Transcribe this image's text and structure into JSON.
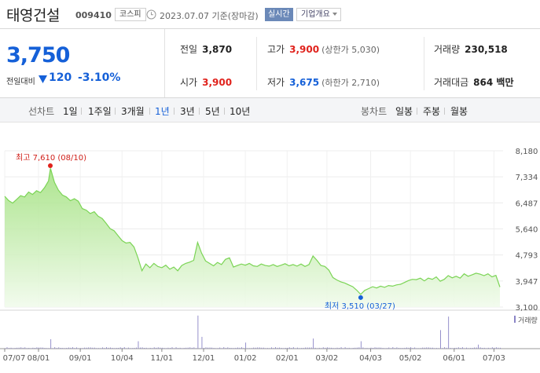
{
  "header": {
    "company_name": "태영건설",
    "stock_code": "009410",
    "market_badge": "코스피",
    "as_of": "2023.07.07 기준(장마감)",
    "realtime_button": "실시간",
    "overview_dropdown": "기업개요"
  },
  "quote": {
    "price": "3,750",
    "change_label": "전일대비",
    "change": "120",
    "change_pct": "-3.10%",
    "prev_close_label": "전일",
    "prev_close": "3,870",
    "high_label": "고가",
    "high": "3,900",
    "upper_limit": "(상한가 5,030)",
    "volume_label": "거래량",
    "volume": "230,518",
    "open_label": "시가",
    "open": "3,900",
    "low_label": "저가",
    "low": "3,675",
    "lower_limit": "(하한가 2,710)",
    "amount_label": "거래대금",
    "amount": "864 백만"
  },
  "period_bar": {
    "line_title": "선차트",
    "line_periods": [
      "1일",
      "1주일",
      "3개월",
      "1년",
      "3년",
      "5년",
      "10년"
    ],
    "active_period": "1년",
    "candle_title": "봉차트",
    "candle_periods": [
      "일봉",
      "주봉",
      "월봉"
    ]
  },
  "colors": {
    "accent_blue": "#1560d8",
    "up_red": "#e0221c",
    "area_line": "#7bd455",
    "volume_bar": "#8a84c6"
  },
  "chart_data": {
    "type": "area",
    "y_ticks": [
      "8,180",
      "7,334",
      "6,487",
      "5,640",
      "4,793",
      "3,947",
      "3,100"
    ],
    "ylim": [
      3100,
      8180
    ],
    "x_tick_labels": [
      "07/07",
      "08/01",
      "09/01",
      "10/04",
      "11/01",
      "12/01",
      "01/02",
      "02/01",
      "03/02",
      "04/03",
      "05/02",
      "06/01",
      "07/03"
    ],
    "x_tick_positions": [
      0,
      17,
      38,
      59,
      79,
      100,
      121,
      142,
      162,
      184,
      204,
      226,
      246
    ],
    "total_days": 249,
    "high_annotation": {
      "label": "최고 7,610 (08/10)",
      "day": 23,
      "value": 7610
    },
    "low_annotation": {
      "label": "최저 3,510 (03/27)",
      "day": 179,
      "value": 3510
    },
    "volume_legend": "거래량",
    "price_points": [
      [
        0,
        6700
      ],
      [
        2,
        6560
      ],
      [
        4,
        6480
      ],
      [
        6,
        6600
      ],
      [
        8,
        6720
      ],
      [
        10,
        6680
      ],
      [
        12,
        6840
      ],
      [
        14,
        6760
      ],
      [
        16,
        6880
      ],
      [
        18,
        6820
      ],
      [
        20,
        6980
      ],
      [
        22,
        7200
      ],
      [
        23,
        7610
      ],
      [
        25,
        7150
      ],
      [
        27,
        6900
      ],
      [
        29,
        6740
      ],
      [
        31,
        6680
      ],
      [
        33,
        6560
      ],
      [
        35,
        6620
      ],
      [
        37,
        6540
      ],
      [
        39,
        6300
      ],
      [
        41,
        6250
      ],
      [
        43,
        6140
      ],
      [
        45,
        6200
      ],
      [
        47,
        6050
      ],
      [
        49,
        5980
      ],
      [
        51,
        5820
      ],
      [
        53,
        5650
      ],
      [
        55,
        5580
      ],
      [
        57,
        5420
      ],
      [
        59,
        5260
      ],
      [
        61,
        5180
      ],
      [
        63,
        5200
      ],
      [
        65,
        5050
      ],
      [
        67,
        4700
      ],
      [
        69,
        4280
      ],
      [
        71,
        4500
      ],
      [
        73,
        4380
      ],
      [
        75,
        4520
      ],
      [
        77,
        4420
      ],
      [
        79,
        4380
      ],
      [
        81,
        4460
      ],
      [
        83,
        4330
      ],
      [
        85,
        4400
      ],
      [
        87,
        4280
      ],
      [
        89,
        4450
      ],
      [
        91,
        4520
      ],
      [
        93,
        4560
      ],
      [
        95,
        4620
      ],
      [
        97,
        5200
      ],
      [
        99,
        4850
      ],
      [
        101,
        4600
      ],
      [
        103,
        4520
      ],
      [
        105,
        4440
      ],
      [
        107,
        4550
      ],
      [
        109,
        4480
      ],
      [
        111,
        4650
      ],
      [
        113,
        4700
      ],
      [
        115,
        4400
      ],
      [
        117,
        4450
      ],
      [
        119,
        4500
      ],
      [
        121,
        4460
      ],
      [
        123,
        4520
      ],
      [
        125,
        4440
      ],
      [
        127,
        4420
      ],
      [
        129,
        4500
      ],
      [
        131,
        4450
      ],
      [
        133,
        4430
      ],
      [
        135,
        4480
      ],
      [
        137,
        4420
      ],
      [
        139,
        4460
      ],
      [
        141,
        4510
      ],
      [
        143,
        4440
      ],
      [
        145,
        4480
      ],
      [
        147,
        4430
      ],
      [
        149,
        4500
      ],
      [
        151,
        4420
      ],
      [
        153,
        4480
      ],
      [
        155,
        4760
      ],
      [
        157,
        4620
      ],
      [
        159,
        4450
      ],
      [
        161,
        4420
      ],
      [
        163,
        4300
      ],
      [
        165,
        4060
      ],
      [
        167,
        3980
      ],
      [
        169,
        3920
      ],
      [
        171,
        3880
      ],
      [
        173,
        3820
      ],
      [
        175,
        3760
      ],
      [
        177,
        3650
      ],
      [
        179,
        3510
      ],
      [
        181,
        3640
      ],
      [
        183,
        3700
      ],
      [
        185,
        3760
      ],
      [
        187,
        3720
      ],
      [
        189,
        3780
      ],
      [
        191,
        3740
      ],
      [
        193,
        3800
      ],
      [
        195,
        3780
      ],
      [
        197,
        3820
      ],
      [
        199,
        3840
      ],
      [
        201,
        3900
      ],
      [
        203,
        3960
      ],
      [
        205,
        4000
      ],
      [
        207,
        3990
      ],
      [
        209,
        4040
      ],
      [
        211,
        3950
      ],
      [
        213,
        4040
      ],
      [
        215,
        4000
      ],
      [
        217,
        4080
      ],
      [
        219,
        3940
      ],
      [
        221,
        4000
      ],
      [
        223,
        4120
      ],
      [
        225,
        4050
      ],
      [
        227,
        4100
      ],
      [
        229,
        4040
      ],
      [
        231,
        4180
      ],
      [
        233,
        4100
      ],
      [
        235,
        4150
      ],
      [
        237,
        4200
      ],
      [
        239,
        4170
      ],
      [
        241,
        4120
      ],
      [
        243,
        4180
      ],
      [
        245,
        4080
      ],
      [
        247,
        4130
      ],
      [
        249,
        3750
      ]
    ],
    "volume_spikes": [
      [
        23,
        0.28
      ],
      [
        67,
        0.22
      ],
      [
        97,
        0.98
      ],
      [
        99,
        0.35
      ],
      [
        121,
        0.18
      ],
      [
        155,
        0.3
      ],
      [
        179,
        0.22
      ],
      [
        219,
        0.55
      ],
      [
        223,
        0.95
      ],
      [
        238,
        0.12
      ]
    ]
  }
}
